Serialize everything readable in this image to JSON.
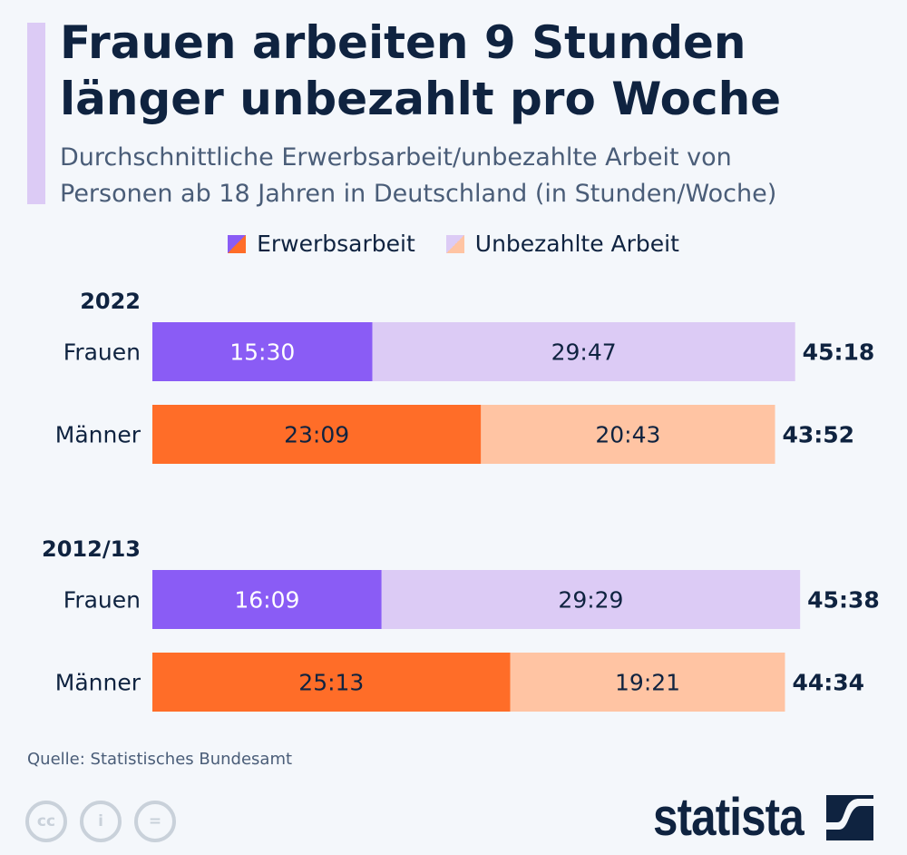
{
  "title_line1": "Frauen arbeiten 9 Stunden",
  "title_line2": "länger unbezahlt pro Woche",
  "subtitle_line1": "Durchschnittliche Erwerbsarbeit/unbezahlte Arbeit von",
  "subtitle_line2": "Personen ab 18 Jahren in Deutschland (in Stunden/Woche)",
  "source": "Quelle: Statistisches Bundesamt",
  "logo": "statista",
  "colors": {
    "frauen_paid": "#8a5cf5",
    "frauen_unpaid": "#dccbf5",
    "maenner_paid": "#ff6d28",
    "maenner_unpaid": "#ffc4a3"
  },
  "chart_data": {
    "type": "bar",
    "orientation": "horizontal-stacked",
    "unit": "hh:mm per week",
    "legend": [
      "Erwerbsarbeit",
      "Unbezahlte Arbeit"
    ],
    "groups": [
      {
        "label": "2022",
        "rows": [
          {
            "label": "Frauen",
            "gender": "frauen",
            "paid": "15:30",
            "unpaid": "29:47",
            "total": "45:18"
          },
          {
            "label": "Männer",
            "gender": "maenner",
            "paid": "23:09",
            "unpaid": "20:43",
            "total": "43:52"
          }
        ]
      },
      {
        "label": "2012/13",
        "rows": [
          {
            "label": "Frauen",
            "gender": "frauen",
            "paid": "16:09",
            "unpaid": "29:29",
            "total": "45:38"
          },
          {
            "label": "Männer",
            "gender": "maenner",
            "paid": "25:13",
            "unpaid": "19:21",
            "total": "44:34"
          }
        ]
      }
    ]
  }
}
